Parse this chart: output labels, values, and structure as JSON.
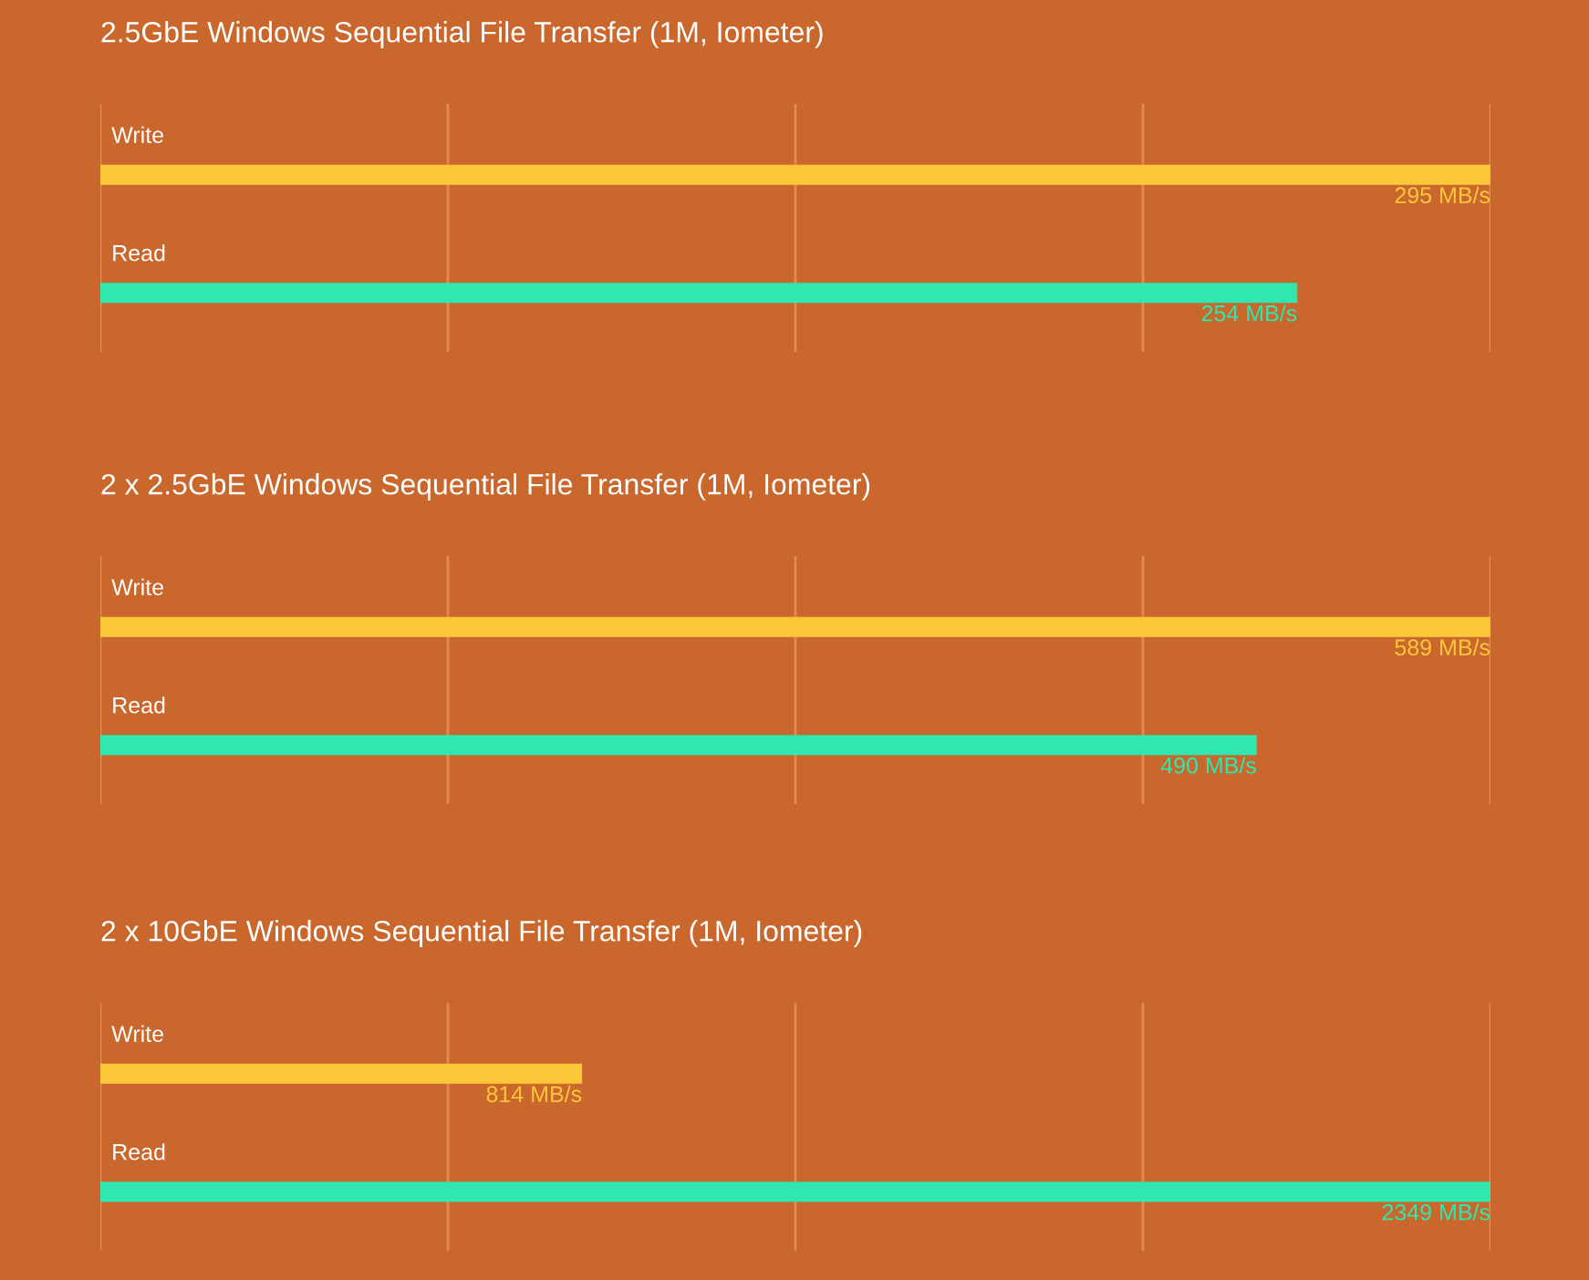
{
  "chart_data": [
    {
      "type": "bar",
      "orientation": "horizontal",
      "title": "2.5GbE Windows Sequential File Transfer (1M, Iometer)",
      "categories": [
        "Write",
        "Read"
      ],
      "values": [
        295,
        254
      ],
      "colors": [
        "#fdc73a",
        "#2ee8b0"
      ],
      "value_labels": [
        "295 MB/s",
        "254 MB/s"
      ],
      "ref_lines": [
        {
          "axis": "x",
          "value": 0,
          "color": "#e08a55"
        },
        {
          "axis": "x",
          "value": 73.75,
          "color": "#e08a55"
        },
        {
          "axis": "x",
          "value": 147.5,
          "color": "#e08a55"
        },
        {
          "axis": "x",
          "value": 221.25,
          "color": "#e08a55"
        },
        {
          "axis": "x",
          "value": 295,
          "color": "#e08a55"
        }
      ]
    },
    {
      "type": "bar",
      "orientation": "horizontal",
      "title": "2 x 2.5GbE Windows Sequential File Transfer (1M, Iometer)",
      "categories": [
        "Write",
        "Read"
      ],
      "values": [
        589,
        490
      ],
      "colors": [
        "#fdc73a",
        "#2ee8b0"
      ],
      "value_labels": [
        "589 MB/s",
        "490 MB/s"
      ],
      "ref_lines": [
        {
          "axis": "x",
          "value": 0,
          "color": "#e08a55"
        },
        {
          "axis": "x",
          "value": 147.25,
          "color": "#e08a55"
        },
        {
          "axis": "x",
          "value": 294.5,
          "color": "#e08a55"
        },
        {
          "axis": "x",
          "value": 441.75,
          "color": "#e08a55"
        },
        {
          "axis": "x",
          "value": 589,
          "color": "#e08a55"
        }
      ]
    },
    {
      "type": "bar",
      "orientation": "horizontal",
      "title": "2 x 10GbE Windows Sequential File Transfer (1M, Iometer)",
      "categories": [
        "Write",
        "Read"
      ],
      "values": [
        814,
        2349
      ],
      "colors": [
        "#fdc73a",
        "#2ee8b0"
      ],
      "value_labels": [
        "814 MB/s",
        "2349 MB/s"
      ],
      "ref_lines": [
        {
          "axis": "x",
          "value": 0,
          "color": "#e08a55"
        },
        {
          "axis": "x",
          "value": 587.25,
          "color": "#e08a55"
        },
        {
          "axis": "x",
          "value": 1174.5,
          "color": "#e08a55"
        },
        {
          "axis": "x",
          "value": 1761.75,
          "color": "#e08a55"
        },
        {
          "axis": "x",
          "value": 2349,
          "color": "#e08a55"
        }
      ]
    }
  ]
}
